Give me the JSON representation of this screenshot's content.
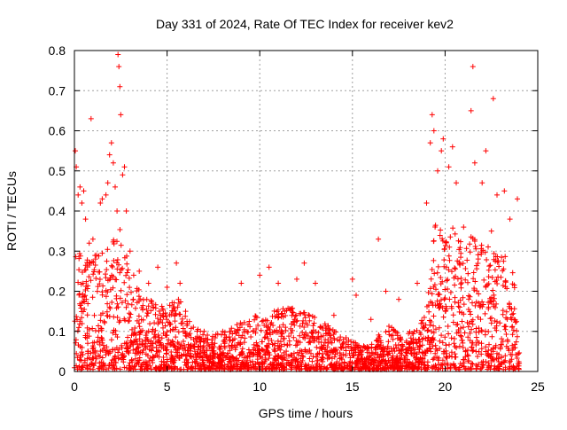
{
  "chart_data": {
    "type": "scatter",
    "title": "Day 331 of 2024, Rate Of TEC Index for receiver kev2",
    "xlabel": "GPS time / hours",
    "ylabel": "ROTI / TECUs",
    "xlim": [
      0,
      25
    ],
    "ylim": [
      0,
      0.8
    ],
    "xticks": [
      0,
      5,
      10,
      15,
      20,
      25
    ],
    "yticks": [
      0,
      0.1,
      0.2,
      0.3,
      0.4,
      0.5,
      0.6,
      0.7,
      0.8
    ],
    "xtick_labels": [
      "0",
      "5",
      "10",
      "15",
      "20",
      "25"
    ],
    "ytick_labels": [
      "0",
      "0.1",
      "0.2",
      "0.3",
      "0.4",
      "0.5",
      "0.6",
      "0.7",
      "0.8"
    ],
    "grid": true,
    "marker": "+",
    "series_color": "#ff0000",
    "points_description": "Dense cluster of ROTI values (~3000+ points) sampled across 0-24 h; listed points are representative readings",
    "points": [
      [
        0.05,
        0.55
      ],
      [
        0.1,
        0.51
      ],
      [
        0.2,
        0.44
      ],
      [
        0.3,
        0.46
      ],
      [
        0.4,
        0.42
      ],
      [
        0.5,
        0.45
      ],
      [
        0.6,
        0.38
      ],
      [
        0.8,
        0.32
      ],
      [
        0.9,
        0.63
      ],
      [
        1.0,
        0.33
      ],
      [
        1.2,
        0.29
      ],
      [
        1.4,
        0.42
      ],
      [
        1.5,
        0.43
      ],
      [
        1.7,
        0.44
      ],
      [
        1.8,
        0.47
      ],
      [
        1.9,
        0.54
      ],
      [
        2.0,
        0.57
      ],
      [
        2.1,
        0.52
      ],
      [
        2.2,
        0.46
      ],
      [
        2.3,
        0.4
      ],
      [
        2.35,
        0.79
      ],
      [
        2.4,
        0.76
      ],
      [
        2.45,
        0.71
      ],
      [
        2.5,
        0.64
      ],
      [
        2.6,
        0.49
      ],
      [
        2.7,
        0.51
      ],
      [
        2.8,
        0.4
      ],
      [
        3.0,
        0.3
      ],
      [
        3.2,
        0.24
      ],
      [
        3.5,
        0.25
      ],
      [
        4.0,
        0.22
      ],
      [
        4.5,
        0.26
      ],
      [
        5.0,
        0.21
      ],
      [
        5.5,
        0.27
      ],
      [
        5.7,
        0.22
      ],
      [
        6.0,
        0.15
      ],
      [
        7.0,
        0.1
      ],
      [
        8.0,
        0.1
      ],
      [
        9.0,
        0.22
      ],
      [
        10.0,
        0.24
      ],
      [
        10.5,
        0.26
      ],
      [
        11.0,
        0.22
      ],
      [
        12.0,
        0.23
      ],
      [
        12.4,
        0.27
      ],
      [
        13.0,
        0.22
      ],
      [
        14.0,
        0.14
      ],
      [
        15.0,
        0.23
      ],
      [
        15.2,
        0.19
      ],
      [
        16.0,
        0.13
      ],
      [
        16.4,
        0.33
      ],
      [
        16.8,
        0.2
      ],
      [
        17.5,
        0.18
      ],
      [
        18.5,
        0.22
      ],
      [
        19.0,
        0.42
      ],
      [
        19.2,
        0.57
      ],
      [
        19.3,
        0.64
      ],
      [
        19.4,
        0.6
      ],
      [
        19.6,
        0.5
      ],
      [
        19.8,
        0.55
      ],
      [
        19.9,
        0.58
      ],
      [
        20.2,
        0.51
      ],
      [
        20.4,
        0.56
      ],
      [
        20.6,
        0.47
      ],
      [
        21.0,
        0.36
      ],
      [
        21.4,
        0.65
      ],
      [
        21.5,
        0.76
      ],
      [
        21.6,
        0.52
      ],
      [
        22.0,
        0.47
      ],
      [
        22.2,
        0.55
      ],
      [
        22.5,
        0.35
      ],
      [
        22.6,
        0.68
      ],
      [
        22.8,
        0.44
      ],
      [
        23.2,
        0.45
      ],
      [
        23.5,
        0.38
      ],
      [
        23.9,
        0.43
      ],
      [
        24.0,
        0.02
      ]
    ]
  }
}
